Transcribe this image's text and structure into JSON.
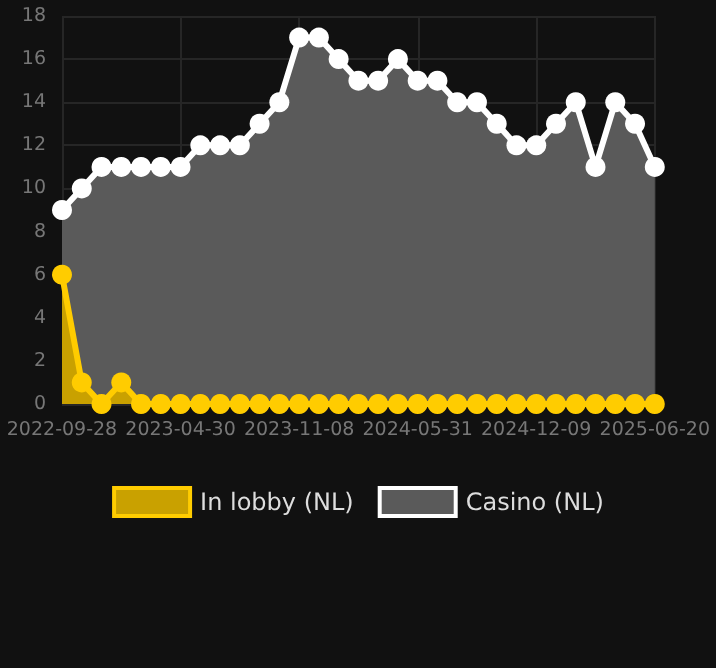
{
  "chart_data": {
    "type": "area",
    "categories": [
      "2022-09-28",
      null,
      null,
      null,
      null,
      null,
      "2023-04-30",
      null,
      null,
      null,
      null,
      null,
      "2023-11-08",
      null,
      null,
      null,
      null,
      null,
      "2024-05-31",
      null,
      null,
      null,
      null,
      null,
      "2024-12-09",
      null,
      null,
      null,
      null,
      null,
      "2025-06-20"
    ],
    "series": [
      {
        "name": "In lobby (NL)",
        "color": "#ffcc00",
        "values": [
          6,
          1,
          0,
          1,
          0,
          0,
          0,
          0,
          0,
          0,
          0,
          0,
          0,
          0,
          0,
          0,
          0,
          0,
          0,
          0,
          0,
          0,
          0,
          0,
          0,
          0,
          0,
          0,
          0,
          0,
          0
        ]
      },
      {
        "name": "Casino (NL)",
        "color": "#ffffff",
        "values": [
          9,
          10,
          11,
          11,
          11,
          11,
          11,
          12,
          12,
          12,
          13,
          14,
          17,
          17,
          16,
          15,
          15,
          16,
          15,
          15,
          14,
          14,
          13,
          12,
          12,
          13,
          14,
          11,
          14,
          13,
          11
        ]
      }
    ],
    "ylim": [
      0,
      18
    ],
    "yticks": [
      0,
      2,
      4,
      6,
      8,
      10,
      12,
      14,
      16,
      18
    ],
    "grid": true,
    "legend": "bottom",
    "marker": "circle",
    "line_style": "solid"
  }
}
